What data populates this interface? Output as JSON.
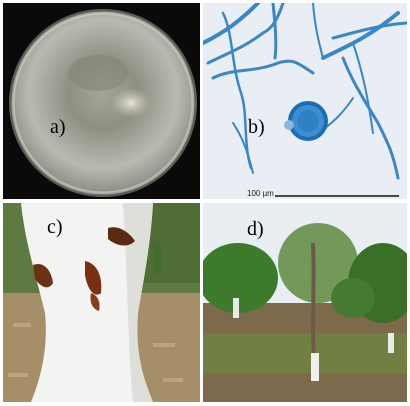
{
  "figure": {
    "panels": [
      {
        "id": "a",
        "label": "a)",
        "description_icon": "petri-dish-culture"
      },
      {
        "id": "b",
        "label": "b)",
        "description_icon": "microscopy-hyphae-spore",
        "scale_bar_label": "100 µm"
      },
      {
        "id": "c",
        "label": "c)",
        "description_icon": "tree-trunk-lesion"
      },
      {
        "id": "d",
        "label": "d)",
        "description_icon": "orchard-trees"
      }
    ]
  },
  "colors": {
    "panel_a_bg": "#0a0a0a",
    "panel_b_bg": "#e9eef4",
    "stain_blue": "#2f7fc2",
    "trunk_white": "#f3f3f1",
    "lesion_brown": "#6a3216",
    "foliage_green": "#3d7a2c"
  }
}
